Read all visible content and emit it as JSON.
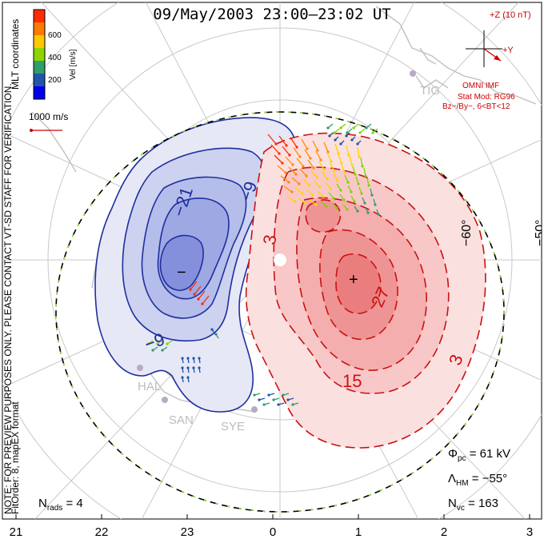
{
  "title": "09/May/2003 23:00–23:02 UT",
  "legend": {
    "ticks": [
      "600",
      "400",
      "200"
    ],
    "axis_label": "Vel [m/s]",
    "colors": [
      "#ff2a00",
      "#ff8c00",
      "#ffd400",
      "#7fd400",
      "#2e9e6a",
      "#2255aa"
    ],
    "scale_label": "1000 m/s",
    "coord_label": "MLT coordinates"
  },
  "side_notes": {
    "preview": "NOTE: FOR PREVIEW PURPOSES ONLY. PLEASE CONTACT VT-SD STAFF FOR VERIFICATION.",
    "fit": "FitOrder: 8, mapEX format"
  },
  "imf": {
    "z_label": "+Z (10 nT)",
    "y_label": "+Y",
    "source": "OMNI IMF",
    "model": "Stat Mod: RG96",
    "condition": "Bz−/By−, 6<BT<12",
    "color": "#cc0000"
  },
  "stations": [
    "TIG",
    "HAL",
    "SAN",
    "SYE"
  ],
  "lat_labels": [
    "−60°",
    "−50°"
  ],
  "stats": {
    "phi_pc": "61 kV",
    "lambda_hm": "−55°",
    "n_vc": "163",
    "n_rads": "4"
  },
  "chart_data": {
    "type": "polar contour map",
    "x_ticks": [
      "21",
      "22",
      "23",
      "0",
      "1",
      "2",
      "3"
    ],
    "contour_labels_negative": [
      "−21",
      "−9",
      "−9"
    ],
    "contour_labels_positive": [
      "3",
      "27",
      "15",
      "3"
    ],
    "extrema_markers": [
      "−",
      "+"
    ],
    "negative_color": "#2233aa",
    "positive_color": "#cc1111"
  }
}
